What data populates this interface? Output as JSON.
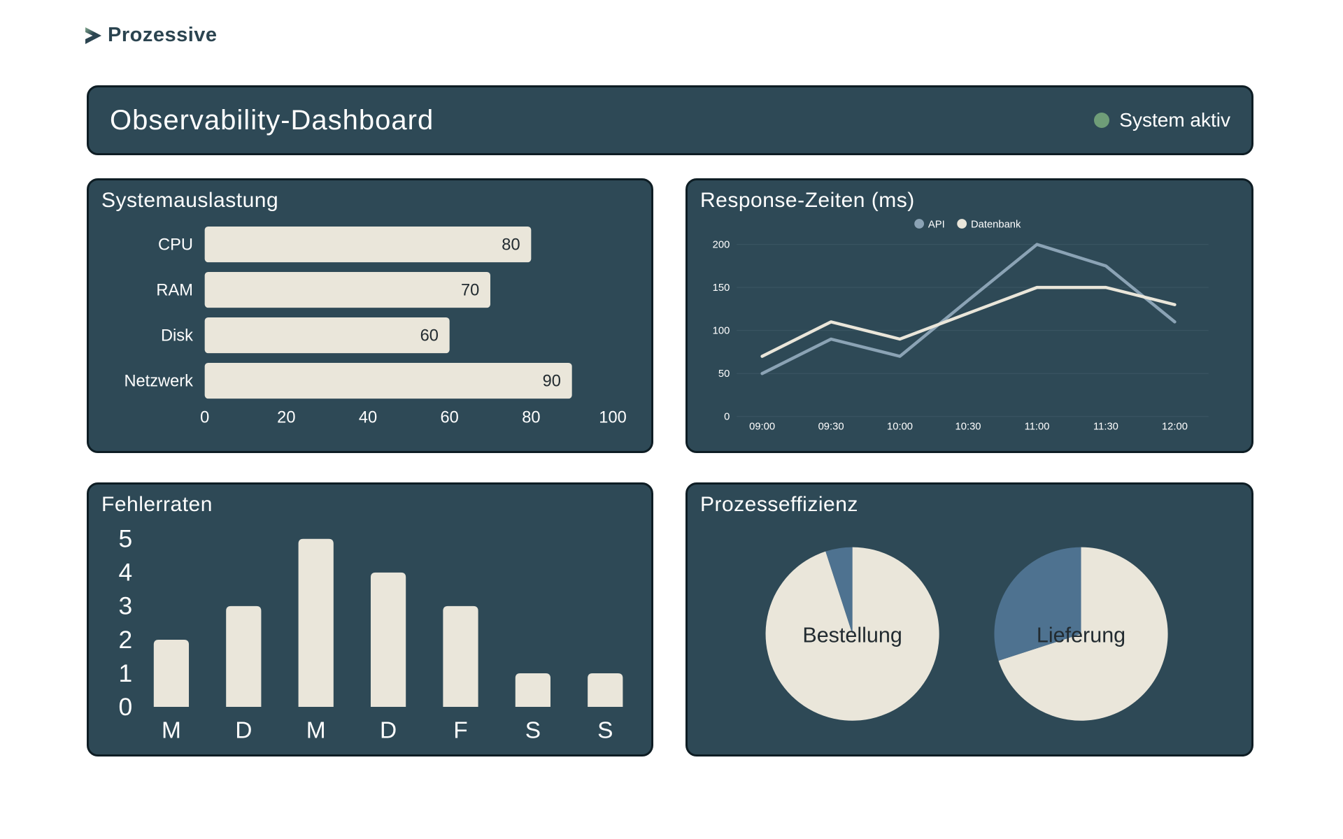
{
  "logo": {
    "text": "Prozessive"
  },
  "header": {
    "title": "Observability-Dashboard",
    "status": {
      "label": "System aktiv",
      "color": "#6f9d78"
    }
  },
  "colors": {
    "page_bg": "#ffffff",
    "panel_bg": "#2e4956",
    "panel_border": "#0e1d24",
    "cream": "#eae6da",
    "slate_light": "#8ba3b5",
    "slate": "#4e7290",
    "grid": "#425d6b",
    "text_light": "#ffffff",
    "text_dark": "#222b30",
    "logo_text": "#2b4450",
    "logo_accent": "#83a98e",
    "status_green": "#6f9d78"
  },
  "panels": {
    "system_load": {
      "title": "Systemauslastung"
    },
    "response_times": {
      "title": "Response-Zeiten (ms)"
    },
    "error_rates": {
      "title": "Fehlerraten"
    },
    "process_efficiency": {
      "title": "Prozesseffizienz"
    }
  },
  "chart_data": [
    {
      "type": "bar",
      "orientation": "horizontal",
      "title": "Systemauslastung",
      "categories": [
        "CPU",
        "RAM",
        "Disk",
        "Netzwerk"
      ],
      "values": [
        80,
        70,
        60,
        90
      ],
      "xlim": [
        0,
        100
      ],
      "xticks": [
        0,
        20,
        40,
        60,
        80,
        100
      ],
      "bar_color": "#eae6da",
      "value_labels": [
        80,
        70,
        60,
        90
      ],
      "grid": false
    },
    {
      "type": "line",
      "title": "Response-Zeiten (ms)",
      "x": [
        "09:00",
        "09:30",
        "10:00",
        "10:30",
        "11:00",
        "11:30",
        "12:00"
      ],
      "series": [
        {
          "name": "API",
          "color": "#8ba3b5",
          "values": [
            50,
            90,
            70,
            135,
            200,
            175,
            110
          ]
        },
        {
          "name": "Datenbank",
          "color": "#eae6da",
          "values": [
            70,
            110,
            90,
            120,
            150,
            150,
            130
          ]
        }
      ],
      "ylim": [
        0,
        200
      ],
      "yticks": [
        0,
        50,
        100,
        150,
        200
      ],
      "grid": true,
      "legend_position": "top"
    },
    {
      "type": "bar",
      "orientation": "vertical",
      "title": "Fehlerraten",
      "categories": [
        "M",
        "D",
        "M",
        "D",
        "F",
        "S",
        "S"
      ],
      "values": [
        2,
        3,
        5,
        4,
        3,
        1,
        1
      ],
      "ylim": [
        0,
        5
      ],
      "yticks": [
        0,
        1,
        2,
        3,
        4,
        5
      ],
      "bar_color": "#eae6da",
      "grid": false
    },
    {
      "type": "pie",
      "title": "Prozesseffizienz",
      "pies": [
        {
          "label": "Bestellung",
          "slices": [
            {
              "value": 95,
              "color": "#eae6da"
            },
            {
              "value": 5,
              "color": "#4e7290"
            }
          ]
        },
        {
          "label": "Lieferung",
          "slices": [
            {
              "value": 70,
              "color": "#eae6da"
            },
            {
              "value": 30,
              "color": "#4e7290"
            }
          ]
        }
      ]
    }
  ]
}
